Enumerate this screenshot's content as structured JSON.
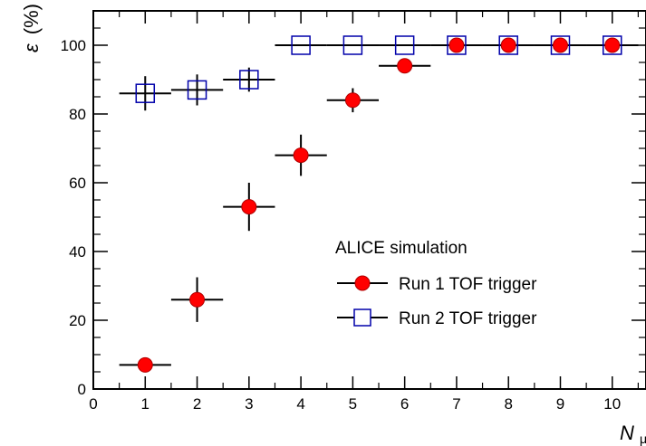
{
  "chart_data": {
    "type": "scatter",
    "xlabel": {
      "main": "N",
      "sub": "μ"
    },
    "ylabel": {
      "main": "ε",
      "unit": "(%)"
    },
    "xlim": [
      0,
      10.65
    ],
    "ylim": [
      0,
      110
    ],
    "x_ticks": [
      "0",
      "1",
      "2",
      "3",
      "4",
      "5",
      "6",
      "7",
      "8",
      "9",
      "10"
    ],
    "y_ticks": [
      "0",
      "20",
      "40",
      "60",
      "80",
      "100"
    ],
    "legend_header": "ALICE simulation",
    "series": [
      {
        "name": "Run 1 TOF trigger",
        "marker": "filled-circle",
        "color": "#ff0000",
        "points": [
          {
            "x": 1,
            "y": 7,
            "yerr": 2
          },
          {
            "x": 2,
            "y": 26,
            "yerr": 6.5
          },
          {
            "x": 3,
            "y": 53,
            "yerr": 7
          },
          {
            "x": 4,
            "y": 68,
            "yerr": 6
          },
          {
            "x": 5,
            "y": 84,
            "yerr": 3.5
          },
          {
            "x": 6,
            "y": 94,
            "yerr": 0
          },
          {
            "x": 7,
            "y": 100,
            "yerr": 0
          },
          {
            "x": 8,
            "y": 100,
            "yerr": 0
          },
          {
            "x": 9,
            "y": 100,
            "yerr": 0
          },
          {
            "x": 10,
            "y": 100,
            "yerr": 0
          }
        ]
      },
      {
        "name": "Run 2 TOF trigger",
        "marker": "open-square",
        "color": "#0000aa",
        "points": [
          {
            "x": 1,
            "y": 86,
            "yerr": 5
          },
          {
            "x": 2,
            "y": 87,
            "yerr": 4.5
          },
          {
            "x": 3,
            "y": 90,
            "yerr": 3.5
          },
          {
            "x": 4,
            "y": 100,
            "yerr": 0
          },
          {
            "x": 5,
            "y": 100,
            "yerr": 0
          },
          {
            "x": 6,
            "y": 100,
            "yerr": 0
          },
          {
            "x": 7,
            "y": 100,
            "yerr": 0
          },
          {
            "x": 8,
            "y": 100,
            "yerr": 0
          },
          {
            "x": 9,
            "y": 100,
            "yerr": 0
          },
          {
            "x": 10,
            "y": 100,
            "yerr": 0
          }
        ]
      }
    ],
    "xerr": 0.5
  }
}
